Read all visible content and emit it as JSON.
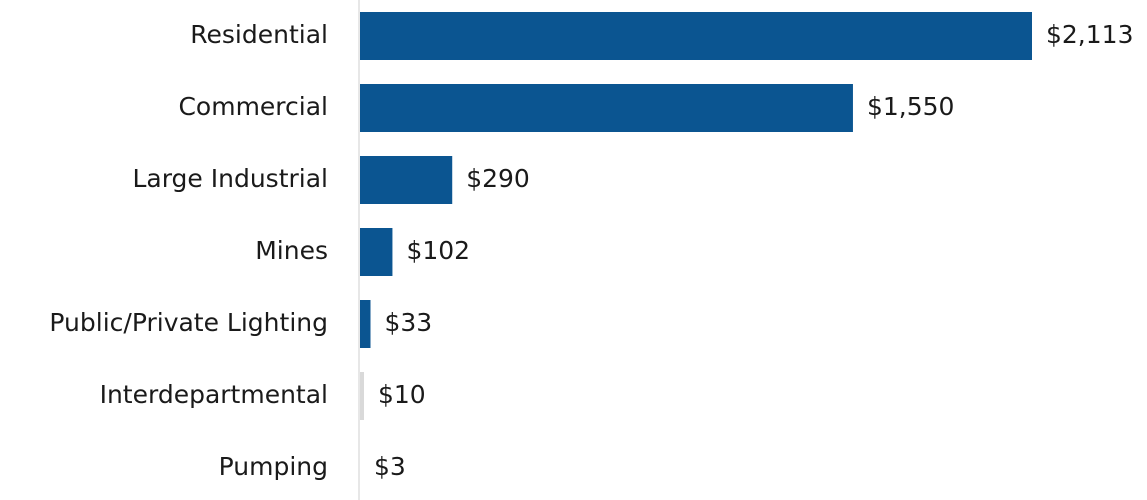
{
  "chart_data": {
    "type": "bar",
    "orientation": "horizontal",
    "categories": [
      "Residential",
      "Commercial",
      "Large Industrial",
      "Mines",
      "Public/Private Lighting",
      "Interdepartmental",
      "Pumping"
    ],
    "values": [
      2113,
      1550,
      290,
      102,
      33,
      10,
      3
    ],
    "value_labels": [
      "$2,113",
      "$1,550",
      "$290",
      "$102",
      "$33",
      "$10",
      "$3"
    ],
    "title": "",
    "xlabel": "",
    "ylabel": "",
    "xlim": [
      0,
      2113
    ],
    "grid": false,
    "legend": "none"
  },
  "colors": {
    "bar": "#0b5591",
    "bar_light": "#d9d9d9",
    "axis_line": "#cfcfcf",
    "text": "#1a1a1a"
  },
  "light_bar_categories": [
    "Interdepartmental"
  ]
}
